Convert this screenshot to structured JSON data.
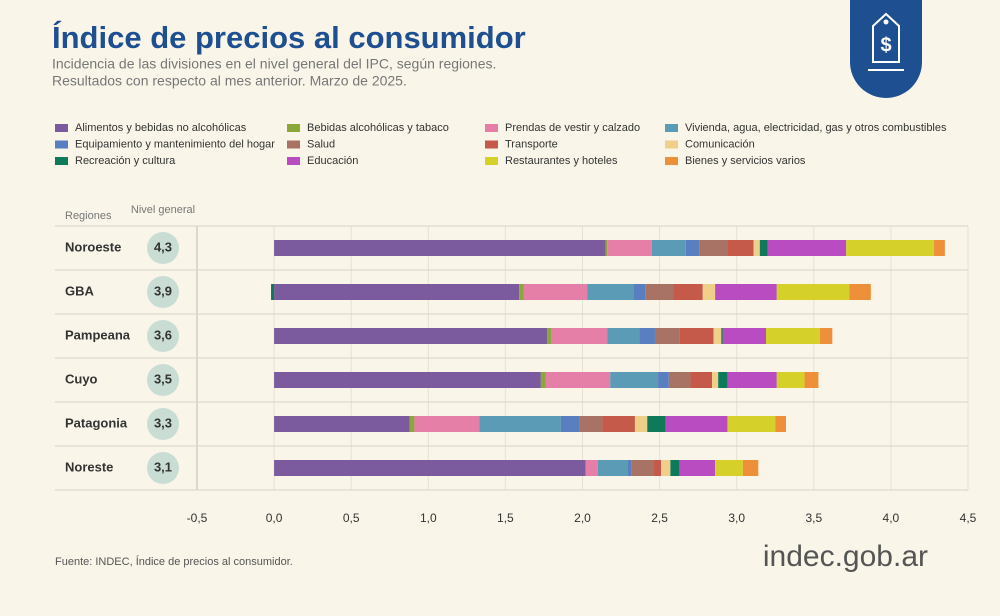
{
  "chart_data": {
    "type": "stacked-bar",
    "title": "Índice de precios al consumidor",
    "subtitle": [
      "Incidencia de las divisiones en el nivel general del IPC, según regiones.",
      "Resultados con respecto al mes anterior. Marzo de 2025."
    ],
    "category_header": "Regiones",
    "categories": [
      "Noroeste",
      "GBA",
      "Pampeana",
      "Cuyo",
      "Patagonia",
      "Noreste"
    ],
    "general": {
      "name": "Nivel general",
      "values": [
        4.3,
        3.9,
        3.6,
        3.5,
        3.3,
        3.1
      ],
      "value_labels": [
        "4,3",
        "3,9",
        "3,6",
        "3,5",
        "3,3",
        "3,1"
      ]
    },
    "series": [
      {
        "name": "Alimentos y bebidas no alcohólicas",
        "color": "#7b5a9e",
        "values": [
          2.15,
          1.59,
          1.77,
          1.73,
          0.88,
          2.02
        ]
      },
      {
        "name": "Bebidas alcohólicas y tabaco",
        "color": "#8aa83a",
        "values": [
          0.01,
          0.03,
          0.03,
          0.03,
          0.03,
          0
        ]
      },
      {
        "name": "Prendas de vestir y calzado",
        "color": "#e67fa8",
        "values": [
          0.29,
          0.41,
          0.36,
          0.42,
          0.42,
          0.08
        ]
      },
      {
        "name": "Vivienda, agua, electricidad, gas y otros combustibles",
        "color": "#5b9bb5",
        "values": [
          0.22,
          0.3,
          0.21,
          0.31,
          0.53,
          0.19
        ]
      },
      {
        "name": "Equipamiento y mantenimiento del hogar",
        "color": "#5a7fc0",
        "values": [
          0.09,
          0.08,
          0.1,
          0.07,
          0.12,
          0.03
        ]
      },
      {
        "name": "Salud",
        "color": "#a87365",
        "values": [
          0.18,
          0.18,
          0.16,
          0.14,
          0.15,
          0.14
        ]
      },
      {
        "name": "Transporte",
        "color": "#c55a4a",
        "values": [
          0.17,
          0.19,
          0.22,
          0.14,
          0.21,
          0.05
        ]
      },
      {
        "name": "Comunicación",
        "color": "#f0cf8a",
        "values": [
          0.04,
          0.08,
          0.05,
          0.04,
          0.08,
          0.06
        ]
      },
      {
        "name": "Recreación y cultura",
        "color": "#0f7a5a",
        "values": [
          0.05,
          -0.02,
          0.01,
          0.06,
          0.12,
          0.06
        ]
      },
      {
        "name": "Educación",
        "color": "#b94cc0",
        "values": [
          0.51,
          0.4,
          0.28,
          0.32,
          0.4,
          0.23
        ]
      },
      {
        "name": "Restaurantes y hoteles",
        "color": "#d6d12a",
        "values": [
          0.57,
          0.47,
          0.35,
          0.18,
          0.31,
          0.18
        ]
      },
      {
        "name": "Bienes y servicios varios",
        "color": "#ee8f3a",
        "values": [
          0.07,
          0.14,
          0.08,
          0.09,
          0.07,
          0.1
        ]
      }
    ],
    "xlim": [
      -0.5,
      4.5
    ],
    "xticks": [
      {
        "value": -0.5,
        "label": "-0,5"
      },
      {
        "value": 0,
        "label": "0,0"
      },
      {
        "value": 0.5,
        "label": "0,5"
      },
      {
        "value": 1,
        "label": "1,0"
      },
      {
        "value": 1.5,
        "label": "1,5"
      },
      {
        "value": 2,
        "label": "2,0"
      },
      {
        "value": 2.5,
        "label": "2,5"
      },
      {
        "value": 3,
        "label": "3,0"
      },
      {
        "value": 3.5,
        "label": "3,5"
      },
      {
        "value": 4,
        "label": "4,0"
      },
      {
        "value": 4.5,
        "label": "4,5"
      }
    ],
    "grid": true,
    "source": "Fuente: INDEC, Índice de precios al consumidor.",
    "brand": "indec.gob.ar"
  }
}
